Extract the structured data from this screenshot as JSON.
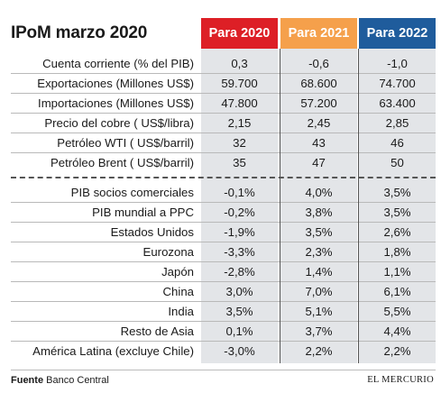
{
  "title": "IPoM marzo 2020",
  "headers": [
    {
      "label": "Para 2020",
      "color": "#dd1f26"
    },
    {
      "label": "Para 2021",
      "color": "#f5a04b"
    },
    {
      "label": "Para 2022",
      "color": "#1f5c9c"
    }
  ],
  "rows": [
    {
      "label": "Cuenta corriente (% del PIB)",
      "values": [
        "0,3",
        "-0,6",
        "-1,0"
      ]
    },
    {
      "label": "Exportaciones  (Millones US$)",
      "values": [
        "59.700",
        "68.600",
        "74.700"
      ]
    },
    {
      "label": "Importaciones (Millones US$)",
      "values": [
        "47.800",
        "57.200",
        "63.400"
      ]
    },
    {
      "label": "Precio del cobre ( US$/libra)",
      "values": [
        "2,15",
        "2,45",
        "2,85"
      ]
    },
    {
      "label": "Petróleo WTI ( US$/barril)",
      "values": [
        "32",
        "43",
        "46"
      ]
    },
    {
      "label": "Petróleo Brent ( US$/barril)",
      "values": [
        "35",
        "47",
        "50"
      ]
    },
    {
      "label": "PIB socios comerciales",
      "values": [
        "-0,1%",
        "4,0%",
        "3,5%"
      ]
    },
    {
      "label": "PIB mundial a PPC",
      "values": [
        "-0,2%",
        "3,8%",
        "3,5%"
      ]
    },
    {
      "label": "Estados Unidos",
      "values": [
        "-1,9%",
        "3,5%",
        "2,6%"
      ]
    },
    {
      "label": "Eurozona",
      "values": [
        "-3,3%",
        "2,3%",
        "1,8%"
      ]
    },
    {
      "label": "Japón",
      "values": [
        "-2,8%",
        "1,4%",
        "1,1%"
      ]
    },
    {
      "label": "China",
      "values": [
        "3,0%",
        "7,0%",
        "6,1%"
      ]
    },
    {
      "label": "India",
      "values": [
        "3,5%",
        "5,1%",
        "5,5%"
      ]
    },
    {
      "label": "Resto de Asia",
      "values": [
        "0,1%",
        "3,7%",
        "4,4%"
      ]
    },
    {
      "label": "América Latina (excluye Chile)",
      "values": [
        "-3,0%",
        "2,2%",
        "2,2%"
      ]
    }
  ],
  "footer": {
    "source_label": "Fuente",
    "source_value": "Banco Central",
    "brand": "EL MERCURIO"
  }
}
